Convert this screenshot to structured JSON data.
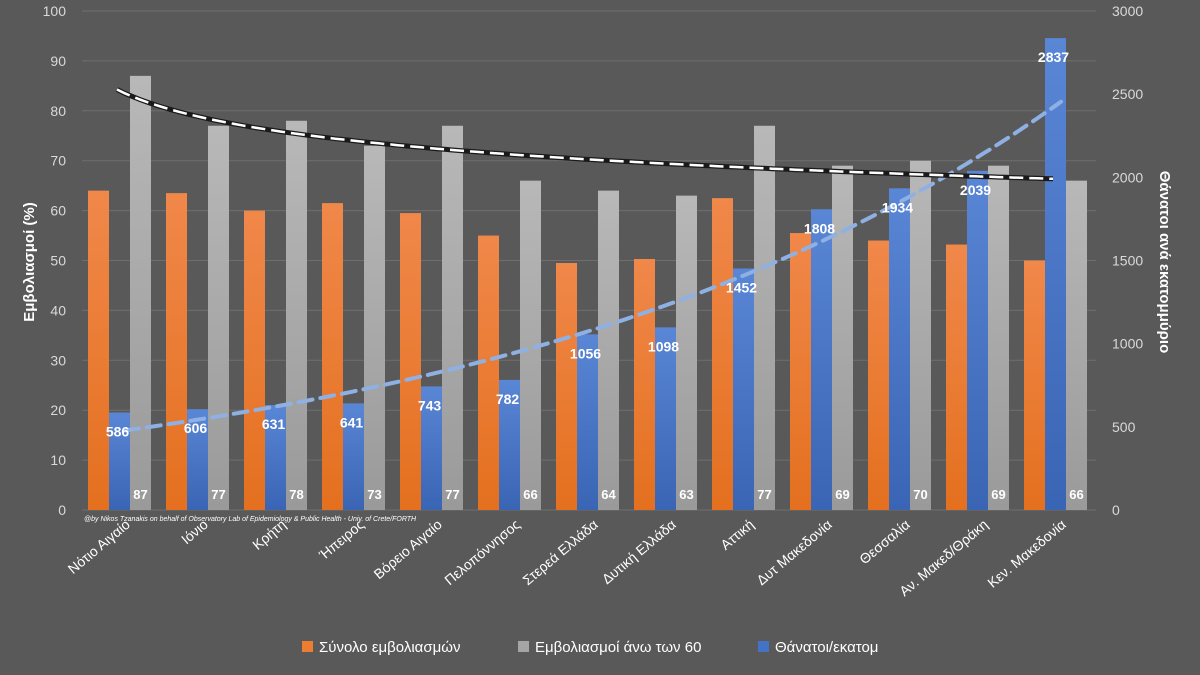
{
  "chart_data": {
    "type": "bar",
    "categories": [
      "Νότιο Αιγαίο",
      "Ιόνιο",
      "Κρήτη",
      "Ήπειρος",
      "Βόρειο Αιγαίο",
      "Πελοπόννησος",
      "Στερεά Ελλάδα",
      "Δυτική Ελλάδα",
      "Αττική",
      "Δυτ Μακεδονία",
      "Θεσσαλία",
      "Αν. Μακεδ/Θράκη",
      "Κεν. Μακεδονία"
    ],
    "series": [
      {
        "name": "Σύνολο εμβολιασμών",
        "axis": "left",
        "color": "#ed7d31",
        "values": [
          64,
          63.5,
          60,
          61.5,
          59.5,
          55,
          49.5,
          50.3,
          62.5,
          55.5,
          54,
          53.2,
          50
        ]
      },
      {
        "name": "Εμβολιασμοί άνω των 60",
        "axis": "left",
        "color": "#a5a5a5",
        "values": [
          87,
          77,
          78,
          73,
          77,
          66,
          64,
          63,
          77,
          69,
          70,
          69,
          66
        ]
      },
      {
        "name": "Θάνατοι/εκατομ",
        "axis": "right",
        "color": "#4472c4",
        "values": [
          586,
          606,
          631,
          641,
          743,
          782,
          1056,
          1098,
          1452,
          1808,
          1934,
          2039,
          2837
        ]
      }
    ],
    "left_labels": [
      "87",
      "77",
      "78",
      "73",
      "77",
      "66",
      "64",
      "63",
      "77",
      "69",
      "70",
      "69",
      "66"
    ],
    "right_labels": [
      "586",
      "606",
      "631",
      "641",
      "743",
      "782",
      "1056",
      "1098",
      "1452",
      "1808",
      "1934",
      "2039",
      "2837"
    ],
    "trendlines": [
      {
        "series": "Θάνατοι/εκατομ",
        "style": "dashed",
        "color": "#8fb0e3"
      },
      {
        "series": "Εμβολιασμοί άνω των 60",
        "style": "dashed-outline",
        "color": "#ffffff"
      }
    ],
    "y_left": {
      "label": "Εμβολιασμοί (%)",
      "lim": [
        0,
        100
      ],
      "ticks": [
        0,
        10,
        20,
        30,
        40,
        50,
        60,
        70,
        80,
        90,
        100
      ]
    },
    "y_right": {
      "label": "Θάνατοι  ανά εκατομμύριο",
      "lim": [
        0,
        3000
      ],
      "ticks": [
        0,
        500,
        1000,
        1500,
        2000,
        2500,
        3000
      ]
    },
    "grid": true,
    "legend_position": "bottom",
    "credit": "@by Nikos Tzanakis on behalf of Observatory Lab of Epidemiology & Public Health - Univ. of Crete/FORTH"
  },
  "colors": {
    "background": "#595959",
    "grid": "#6e6e6e",
    "text": "#ffffff",
    "tick_text": "#d9d9d9"
  }
}
